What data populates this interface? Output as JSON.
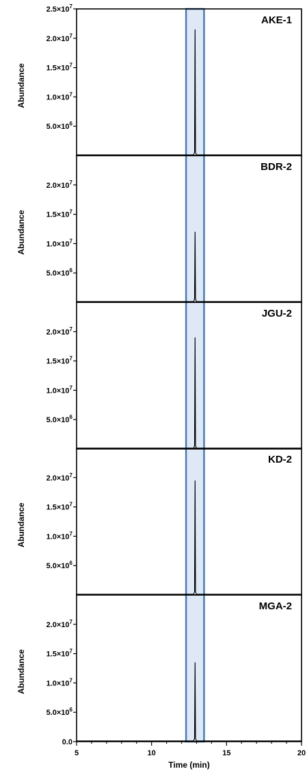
{
  "chart_data": {
    "type": "line",
    "xlabel": "Time (min)",
    "xlim": [
      5,
      20
    ],
    "x_ticks": [
      "5",
      "10",
      "15",
      "20"
    ],
    "ylim": [
      0,
      25000000
    ],
    "highlight_x_range": [
      12.3,
      13.5
    ],
    "highlight_color": "#dfe9f5",
    "highlight_border_color": "#4a7ab5",
    "panels": [
      {
        "name": "AKE-1",
        "ylabel": "Abundance",
        "y_ticks": [
          {
            "value": 25000000,
            "label": "2.5×10"
          },
          {
            "value": 20000000,
            "label": "2.0×10"
          },
          {
            "value": 15000000,
            "label": "1.5×10"
          },
          {
            "value": 10000000,
            "label": "1.0×10"
          },
          {
            "value": 5000000,
            "label": "5.0×10"
          }
        ],
        "peaks": [
          {
            "x": 12.9,
            "y": 21500000
          }
        ]
      },
      {
        "name": "BDR-2",
        "ylabel": "Abundance",
        "y_ticks": [
          {
            "value": 20000000,
            "label": "2.0×10"
          },
          {
            "value": 15000000,
            "label": "1.5×10"
          },
          {
            "value": 10000000,
            "label": "1.0×10"
          },
          {
            "value": 5000000,
            "label": "5.0×10"
          }
        ],
        "peaks": [
          {
            "x": 12.9,
            "y": 12000000
          }
        ]
      },
      {
        "name": "JGU-2",
        "ylabel": "",
        "y_ticks": [
          {
            "value": 20000000,
            "label": "2.0×10"
          },
          {
            "value": 15000000,
            "label": "1.5×10"
          },
          {
            "value": 10000000,
            "label": "1.0×10"
          },
          {
            "value": 5000000,
            "label": "5.0×10"
          }
        ],
        "peaks": [
          {
            "x": 12.9,
            "y": 19000000
          }
        ]
      },
      {
        "name": "KD-2",
        "ylabel": "Abundance",
        "y_ticks": [
          {
            "value": 20000000,
            "label": "2.0×10"
          },
          {
            "value": 15000000,
            "label": "1.5×10"
          },
          {
            "value": 10000000,
            "label": "1.0×10"
          },
          {
            "value": 5000000,
            "label": "5.0×10"
          }
        ],
        "peaks": [
          {
            "x": 12.9,
            "y": 19500000
          }
        ]
      },
      {
        "name": "MGA-2",
        "ylabel": "Abundance",
        "y_ticks": [
          {
            "value": 20000000,
            "label": "2.0×10"
          },
          {
            "value": 15000000,
            "label": "1.5×10"
          },
          {
            "value": 10000000,
            "label": "1.0×10"
          },
          {
            "value": 5000000,
            "label": "5.0×10"
          },
          {
            "value": 0,
            "label": "0.0"
          }
        ],
        "peaks": [
          {
            "x": 12.9,
            "y": 13500000
          }
        ]
      }
    ]
  }
}
